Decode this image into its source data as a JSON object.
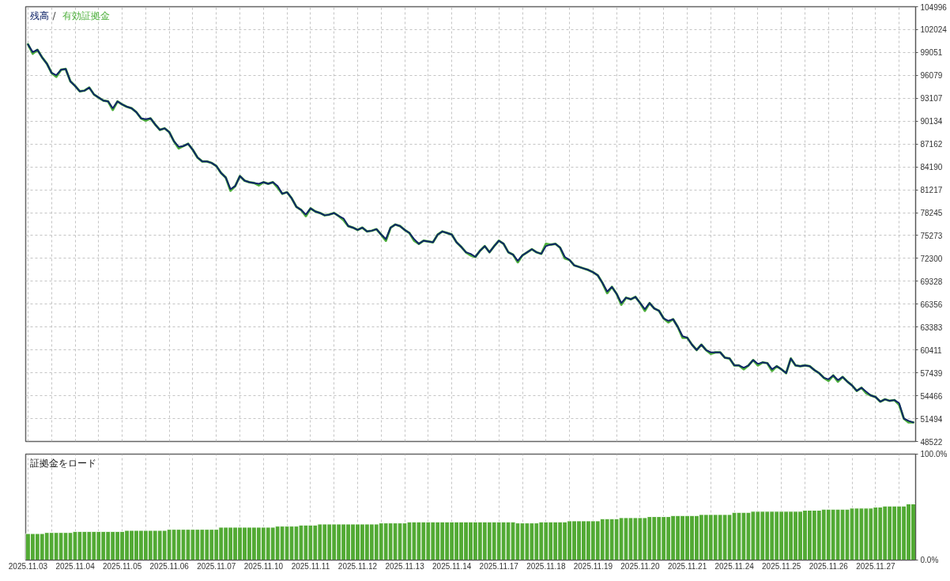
{
  "chart_data": [
    {
      "type": "line",
      "legend": "top left",
      "tick_labels": "y",
      "grid": true,
      "annotations": [
        "/"
      ],
      "ylim": [
        48522,
        104996
      ],
      "yticks": [
        104996,
        102024,
        99051,
        96079,
        93107,
        90134,
        87162,
        84190,
        81217,
        78245,
        75273,
        72300,
        69328,
        66356,
        63383,
        60411,
        57439,
        54466,
        51494,
        48522
      ],
      "categories": [
        "2025.11.03",
        null,
        null,
        null,
        null,
        null,
        null,
        null,
        null,
        null,
        "2025.11.04",
        null,
        null,
        null,
        null,
        null,
        null,
        null,
        null,
        null,
        "2025.11.05",
        null,
        null,
        null,
        null,
        null,
        null,
        null,
        null,
        null,
        "2025.11.06",
        null,
        null,
        null,
        null,
        null,
        null,
        null,
        null,
        null,
        "2025.11.07",
        null,
        null,
        null,
        null,
        null,
        null,
        null,
        null,
        null,
        "2025.11.10",
        null,
        null,
        null,
        null,
        null,
        null,
        null,
        null,
        null,
        "2025.11.11",
        null,
        null,
        null,
        null,
        null,
        null,
        null,
        null,
        null,
        "2025.11.12",
        null,
        null,
        null,
        null,
        null,
        null,
        null,
        null,
        null,
        "2025.11.13",
        null,
        null,
        null,
        null,
        null,
        null,
        null,
        null,
        null,
        "2025.11.14",
        null,
        null,
        null,
        null,
        null,
        null,
        null,
        null,
        null,
        "2025.11.17",
        null,
        null,
        null,
        null,
        null,
        null,
        null,
        null,
        null,
        "2025.11.18",
        null,
        null,
        null,
        null,
        null,
        null,
        null,
        null,
        null,
        "2025.11.19",
        null,
        null,
        null,
        null,
        null,
        null,
        null,
        null,
        null,
        "2025.11.20",
        null,
        null,
        null,
        null,
        null,
        null,
        null,
        null,
        null,
        "2025.11.21",
        null,
        null,
        null,
        null,
        null,
        null,
        null,
        null,
        null,
        "2025.11.24",
        null,
        null,
        null,
        null,
        null,
        null,
        null,
        null,
        null,
        "2025.11.25",
        null,
        null,
        null,
        null,
        null,
        null,
        null,
        null,
        null,
        "2025.11.26",
        null,
        null,
        null,
        null,
        null,
        null,
        null,
        null,
        null,
        "2025.11.27",
        null,
        null,
        null,
        null,
        null,
        null,
        null,
        null
      ],
      "series": [
        {
          "name": "残高",
          "color": "#0f2468",
          "values": [
            100100,
            99100,
            99400,
            98400,
            97600,
            96400,
            96100,
            96800,
            96900,
            95300,
            94700,
            94000,
            94100,
            94500,
            93600,
            93200,
            92800,
            92700,
            91800,
            92700,
            92300,
            92000,
            91800,
            91300,
            90500,
            90400,
            90500,
            89700,
            89000,
            89200,
            88700,
            87500,
            86800,
            86900,
            87200,
            86400,
            85400,
            84900,
            84900,
            84700,
            84300,
            83400,
            82800,
            81300,
            81700,
            83000,
            82400,
            82200,
            82100,
            82000,
            82200,
            82000,
            82200,
            81700,
            80700,
            80900,
            80100,
            79000,
            78600,
            78000,
            78800,
            78400,
            78200,
            77900,
            78000,
            78200,
            77800,
            77500,
            76500,
            76300,
            76000,
            76300,
            75800,
            75900,
            76100,
            75400,
            74800,
            76300,
            76700,
            76500,
            76000,
            75600,
            74800,
            74200,
            74600,
            74500,
            74400,
            75400,
            75800,
            75600,
            75400,
            74400,
            73800,
            73100,
            72900,
            72500,
            73300,
            73900,
            73100,
            73900,
            74600,
            74200,
            73100,
            72800,
            72000,
            72700,
            73100,
            73500,
            73100,
            72900,
            73900,
            74100,
            74200,
            73700,
            72500,
            72100,
            71400,
            71200,
            71000,
            70800,
            70500,
            70100,
            69100,
            68000,
            68600,
            67700,
            66500,
            67200,
            67000,
            67300,
            66500,
            65700,
            66500,
            65800,
            65500,
            64500,
            64200,
            64400,
            63400,
            62200,
            62000,
            61100,
            60400,
            61100,
            60400,
            60100,
            60100,
            60100,
            59400,
            59300,
            58400,
            58400,
            58100,
            58400,
            59100,
            58600,
            58800,
            58700,
            57900,
            58300,
            57900,
            57400,
            59300,
            58400,
            58300,
            58400,
            58300,
            57800,
            57400,
            56800,
            56600,
            57100,
            56500,
            56900,
            56300,
            55800,
            55100,
            55500,
            55000,
            54500,
            54300,
            53700,
            54000,
            53800,
            53900,
            53500,
            51500,
            51200,
            51000
          ]
        },
        {
          "name": "有効証拠金",
          "color": "#4caf3a",
          "values": [
            100100,
            98900,
            99400,
            98400,
            97600,
            96400,
            95900,
            96800,
            96900,
            95300,
            94700,
            94000,
            94100,
            94500,
            93600,
            93200,
            92800,
            92700,
            91600,
            92700,
            92300,
            92000,
            91800,
            91300,
            90500,
            90200,
            90500,
            89700,
            89000,
            89200,
            88700,
            87500,
            86600,
            86900,
            87200,
            86400,
            85400,
            84900,
            84900,
            84700,
            84300,
            83400,
            82800,
            81100,
            81700,
            83000,
            82400,
            82200,
            82100,
            81800,
            82200,
            82000,
            82200,
            81500,
            80700,
            80900,
            80100,
            79000,
            78600,
            77800,
            78800,
            78400,
            78200,
            77900,
            78000,
            78200,
            77800,
            77300,
            76500,
            76300,
            76000,
            76300,
            75800,
            75900,
            76100,
            75400,
            74600,
            76300,
            76700,
            76500,
            76000,
            75600,
            74600,
            74200,
            74600,
            74500,
            74400,
            75400,
            75800,
            75600,
            75400,
            74400,
            73800,
            73100,
            72700,
            72500,
            73300,
            73900,
            73100,
            73900,
            74600,
            74200,
            73100,
            72800,
            71800,
            72700,
            73100,
            73500,
            73100,
            72900,
            74200,
            74100,
            74200,
            73700,
            72300,
            72100,
            71400,
            71200,
            71000,
            70800,
            70500,
            70100,
            69100,
            67800,
            68600,
            67700,
            66300,
            67200,
            67000,
            67300,
            66500,
            65500,
            66500,
            65800,
            65500,
            64500,
            64000,
            64400,
            63400,
            62000,
            62000,
            61100,
            60400,
            61100,
            60400,
            59900,
            60100,
            60100,
            59400,
            59300,
            58400,
            58400,
            57900,
            58400,
            59100,
            58400,
            58800,
            58700,
            57700,
            58300,
            57900,
            57400,
            59300,
            58400,
            58300,
            58400,
            58300,
            57800,
            57400,
            56800,
            56400,
            57100,
            56300,
            56900,
            56300,
            55800,
            55100,
            55500,
            54800,
            54500,
            54300,
            53700,
            54000,
            53800,
            53900,
            53300,
            51500,
            51000,
            51000
          ]
        }
      ]
    },
    {
      "type": "bar",
      "title": "証拠金をロード",
      "grid": "x",
      "color": "#52aa34",
      "ylim": [
        0,
        100
      ],
      "yticks": [
        {
          "value": 0,
          "label": "0.0%"
        },
        {
          "value": 100,
          "label": "100.0%"
        }
      ],
      "categories": [
        "2025.11.03",
        null,
        null,
        null,
        null,
        null,
        null,
        null,
        null,
        null,
        "2025.11.04",
        null,
        null,
        null,
        null,
        null,
        null,
        null,
        null,
        null,
        "2025.11.05",
        null,
        null,
        null,
        null,
        null,
        null,
        null,
        null,
        null,
        "2025.11.06",
        null,
        null,
        null,
        null,
        null,
        null,
        null,
        null,
        null,
        "2025.11.07",
        null,
        null,
        null,
        null,
        null,
        null,
        null,
        null,
        null,
        "2025.11.10",
        null,
        null,
        null,
        null,
        null,
        null,
        null,
        null,
        null,
        "2025.11.11",
        null,
        null,
        null,
        null,
        null,
        null,
        null,
        null,
        null,
        "2025.11.12",
        null,
        null,
        null,
        null,
        null,
        null,
        null,
        null,
        null,
        "2025.11.13",
        null,
        null,
        null,
        null,
        null,
        null,
        null,
        null,
        null,
        "2025.11.14",
        null,
        null,
        null,
        null,
        null,
        null,
        null,
        null,
        null,
        "2025.11.17",
        null,
        null,
        null,
        null,
        null,
        null,
        null,
        null,
        null,
        "2025.11.18",
        null,
        null,
        null,
        null,
        null,
        null,
        null,
        null,
        null,
        "2025.11.19",
        null,
        null,
        null,
        null,
        null,
        null,
        null,
        null,
        null,
        "2025.11.20",
        null,
        null,
        null,
        null,
        null,
        null,
        null,
        null,
        null,
        "2025.11.21",
        null,
        null,
        null,
        null,
        null,
        null,
        null,
        null,
        null,
        "2025.11.24",
        null,
        null,
        null,
        null,
        null,
        null,
        null,
        null,
        null,
        "2025.11.25",
        null,
        null,
        null,
        null,
        null,
        null,
        null,
        null,
        null,
        "2025.11.26",
        null,
        null,
        null,
        null,
        null,
        null,
        null,
        null,
        null,
        "2025.11.27",
        null,
        null,
        null,
        null,
        null,
        null,
        null,
        null
      ],
      "values": [
        25,
        25,
        25,
        25,
        26,
        26,
        26,
        26,
        26,
        26,
        27,
        27,
        27,
        27,
        27,
        27,
        27,
        27,
        27,
        27,
        27,
        28,
        28,
        28,
        28,
        28,
        28,
        28,
        28,
        28,
        29,
        29,
        29,
        29,
        29,
        29,
        29,
        29,
        29,
        29,
        29,
        31,
        31,
        31,
        31,
        31,
        31,
        31,
        31,
        31,
        31,
        31,
        31,
        32,
        32,
        32,
        32,
        32,
        33,
        33,
        33,
        33,
        34,
        34,
        34,
        34,
        34,
        34,
        34,
        34,
        34,
        34,
        34,
        34,
        34,
        35,
        35,
        35,
        35,
        35,
        35,
        36,
        36,
        36,
        36,
        36,
        36,
        36,
        36,
        36,
        36,
        36,
        36,
        36,
        36,
        36,
        36,
        36,
        36,
        36,
        36,
        36,
        36,
        36,
        35,
        35,
        35,
        35,
        35,
        36,
        36,
        36,
        36,
        36,
        36,
        37,
        37,
        37,
        37,
        37,
        37,
        37,
        39,
        39,
        39,
        39,
        40,
        40,
        40,
        40,
        40,
        40,
        41,
        41,
        41,
        41,
        41,
        42,
        42,
        42,
        42,
        42,
        42,
        43,
        43,
        43,
        43,
        43,
        43,
        43,
        45,
        45,
        45,
        45,
        46,
        46,
        46,
        46,
        46,
        46,
        46,
        46,
        46,
        46,
        46,
        47,
        47,
        47,
        47,
        48,
        48,
        48,
        48,
        48,
        48,
        49,
        49,
        49,
        49,
        49,
        50,
        50,
        51,
        51,
        51,
        51,
        51,
        53,
        53
      ]
    }
  ]
}
